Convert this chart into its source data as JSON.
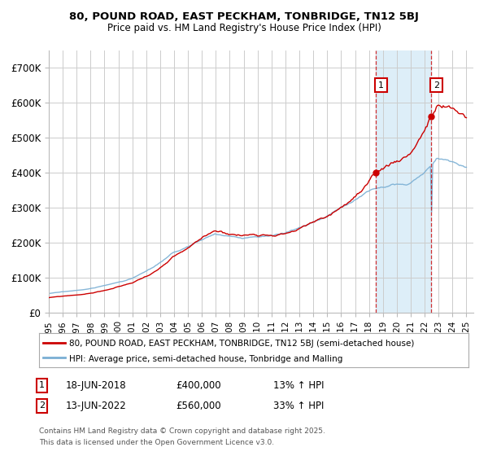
{
  "title1": "80, POUND ROAD, EAST PECKHAM, TONBRIDGE, TN12 5BJ",
  "title2": "Price paid vs. HM Land Registry's House Price Index (HPI)",
  "background_color": "#ffffff",
  "plot_bg_color": "#ffffff",
  "grid_color": "#cccccc",
  "hpi_color": "#7aafd4",
  "hpi_fill_color": "#c8dff0",
  "price_color": "#cc0000",
  "shade_color": "#ddeef8",
  "sale1_year": 2018.46,
  "sale1_price": 400000,
  "sale1_date": "18-JUN-2018",
  "sale1_pct": "13% ↑ HPI",
  "sale1_price_str": "£400,000",
  "sale2_year": 2022.46,
  "sale2_price": 560000,
  "sale2_date": "13-JUN-2022",
  "sale2_pct": "33% ↑ HPI",
  "sale2_price_str": "£560,000",
  "legend_label1": "80, POUND ROAD, EAST PECKHAM, TONBRIDGE, TN12 5BJ (semi-detached house)",
  "legend_label2": "HPI: Average price, semi-detached house, Tonbridge and Malling",
  "footnote1": "Contains HM Land Registry data © Crown copyright and database right 2025.",
  "footnote2": "This data is licensed under the Open Government Licence v3.0.",
  "ylim": [
    0,
    750000
  ],
  "yticks": [
    0,
    100000,
    200000,
    300000,
    400000,
    500000,
    600000,
    700000
  ],
  "ytick_labels": [
    "£0",
    "£100K",
    "£200K",
    "£300K",
    "£400K",
    "£500K",
    "£600K",
    "£700K"
  ],
  "xlim_start": 1995,
  "xlim_end": 2025.5
}
